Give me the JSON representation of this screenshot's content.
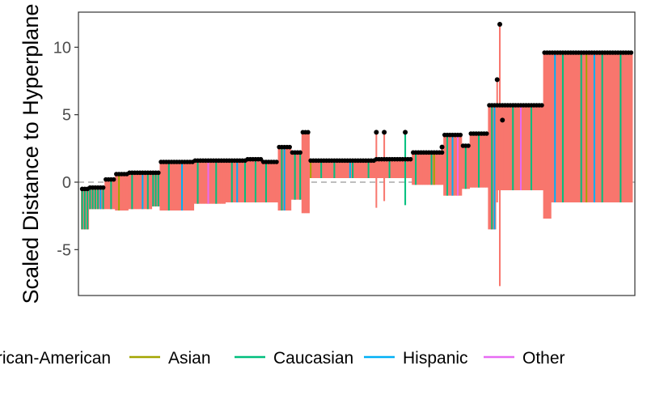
{
  "chart_data": {
    "type": "line",
    "title": "",
    "ylabel": "Scaled Distance to Hyperplane",
    "xlabel": "",
    "ylim": [
      -8.4,
      12.6
    ],
    "yticks": [
      -5,
      0,
      5,
      10
    ],
    "ytick_labels": [
      "-5",
      "0",
      "5",
      "10"
    ],
    "reference_line": {
      "y": 0,
      "style": "dashed",
      "color": "#BEBEBE"
    },
    "grid": false,
    "legend": {
      "placement": "bottom",
      "entries": [
        {
          "label": "African-American",
          "color": "#F8766D"
        },
        {
          "label": "Asian",
          "color": "#A3A500"
        },
        {
          "label": "Caucasian",
          "color": "#00BF7D"
        },
        {
          "label": "Hispanic",
          "color": "#00B0F6"
        },
        {
          "label": "Other",
          "color": "#E76BF3"
        }
      ]
    },
    "n_points": 210,
    "dot_color": "#000000",
    "series_description": "Each observation has a vertical segment colored by race from its lower bound to its upper bound, with a black point at the upper value",
    "segments": [
      {
        "x_start": 1,
        "x_end": 3,
        "upper": -0.5,
        "lower": -3.5,
        "race": "Caucasian"
      },
      {
        "x_start": 4,
        "x_end": 9,
        "upper": -0.4,
        "lower": -2.0,
        "race": "Caucasian"
      },
      {
        "x_start": 10,
        "x_end": 13,
        "upper": 0.2,
        "lower": -2.0,
        "race": "African-American"
      },
      {
        "x_start": 14,
        "x_end": 18,
        "upper": 0.6,
        "lower": -2.1,
        "race": "African-American"
      },
      {
        "x_start": 19,
        "x_end": 27,
        "upper": 0.7,
        "lower": -2.0,
        "race": "African-American"
      },
      {
        "x_start": 28,
        "x_end": 30,
        "upper": 0.7,
        "lower": -1.8,
        "race": "Caucasian"
      },
      {
        "x_start": 31,
        "x_end": 43,
        "upper": 1.5,
        "lower": -2.1,
        "race": "African-American"
      },
      {
        "x_start": 44,
        "x_end": 55,
        "upper": 1.6,
        "lower": -1.6,
        "race": "African-American"
      },
      {
        "x_start": 56,
        "x_end": 63,
        "upper": 1.6,
        "lower": -1.5,
        "race": "African-American"
      },
      {
        "x_start": 64,
        "x_end": 69,
        "upper": 1.7,
        "lower": -1.5,
        "race": "African-American"
      },
      {
        "x_start": 70,
        "x_end": 75,
        "upper": 1.5,
        "lower": -1.5,
        "race": "African-American"
      },
      {
        "x_start": 76,
        "x_end": 80,
        "upper": 2.6,
        "lower": -2.1,
        "race": "African-American"
      },
      {
        "x_start": 81,
        "x_end": 84,
        "upper": 2.2,
        "lower": -1.3,
        "race": "African-American"
      },
      {
        "x_start": 85,
        "x_end": 87,
        "upper": 3.7,
        "lower": -2.3,
        "race": "African-American"
      },
      {
        "x_start": 88,
        "x_end": 99,
        "upper": 1.6,
        "lower": 0.3,
        "race": "African-American"
      },
      {
        "x_start": 100,
        "x_end": 112,
        "upper": 1.6,
        "lower": 0.3,
        "race": "African-American"
      },
      {
        "x_start": 113,
        "x_end": 119,
        "upper": 1.7,
        "lower": 0.3,
        "race": "African-American"
      },
      {
        "x_start": 120,
        "x_end": 126,
        "upper": 1.7,
        "lower": 0.3,
        "race": "African-American"
      },
      {
        "x_start": 127,
        "x_end": 138,
        "upper": 2.2,
        "lower": -0.2,
        "race": "African-American"
      },
      {
        "x_start": 139,
        "x_end": 145,
        "upper": 3.5,
        "lower": -1.0,
        "race": "African-American"
      },
      {
        "x_start": 146,
        "x_end": 148,
        "upper": 2.7,
        "lower": -0.5,
        "race": "African-American"
      },
      {
        "x_start": 149,
        "x_end": 155,
        "upper": 3.6,
        "lower": -0.4,
        "race": "African-American"
      },
      {
        "x_start": 156,
        "x_end": 158,
        "upper": 5.7,
        "lower": -3.5,
        "race": "African-American"
      },
      {
        "x_start": 159,
        "x_end": 176,
        "upper": 5.7,
        "lower": -0.6,
        "race": "African-American"
      },
      {
        "x_start": 177,
        "x_end": 179,
        "upper": 9.6,
        "lower": -2.7,
        "race": "African-American"
      },
      {
        "x_start": 180,
        "x_end": 210,
        "upper": 9.6,
        "lower": -1.5,
        "race": "African-American"
      }
    ],
    "spikes": [
      {
        "x": 113,
        "upper": 3.7,
        "lower": -1.9,
        "race": "African-American"
      },
      {
        "x": 116,
        "upper": 3.7,
        "lower": -1.4,
        "race": "African-American"
      },
      {
        "x": 124,
        "upper": 3.7,
        "lower": -1.7,
        "race": "Caucasian"
      },
      {
        "x": 160,
        "upper": 11.7,
        "lower": -7.7,
        "race": "African-American"
      },
      {
        "x": 159,
        "upper": 7.6,
        "lower": -1.5,
        "race": "African-American"
      },
      {
        "x": 161,
        "upper": 4.6,
        "lower": -0.6,
        "race": "African-American"
      },
      {
        "x": 138,
        "upper": 2.6,
        "lower": 0.3,
        "race": "African-American"
      }
    ],
    "race_accents": {
      "Caucasian": [
        5,
        12,
        20,
        26,
        34,
        45,
        52,
        58,
        63,
        67,
        71,
        77,
        82,
        84,
        92,
        97,
        104,
        110,
        118,
        128,
        134,
        140,
        147,
        152,
        157,
        165,
        172,
        184,
        191,
        199,
        206
      ],
      "Hispanic": [
        8,
        24,
        39,
        60,
        78,
        103,
        142,
        158,
        181,
        196
      ],
      "Other": [
        49,
        144,
        168
      ],
      "Asian": [
        15,
        88,
        135,
        193
      ]
    }
  }
}
